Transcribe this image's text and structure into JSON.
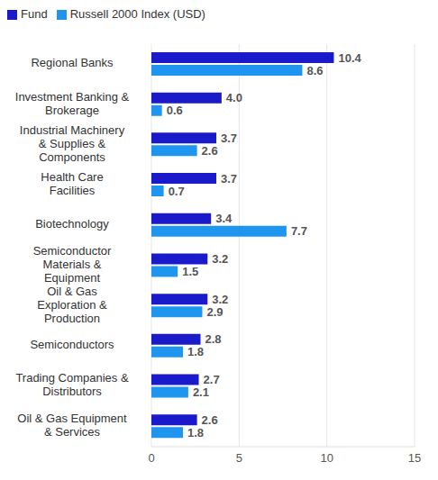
{
  "chart_data": {
    "type": "bar",
    "orientation": "horizontal",
    "categories": [
      "Regional Banks",
      "Investment Banking & Brokerage",
      "Industrial Machinery & Supplies & Components",
      "Health Care Facilities",
      "Biotechnology",
      "Semiconductor Materials & Equipment",
      "Oil & Gas Exploration & Production",
      "Semiconductors",
      "Trading Companies & Distributors",
      "Oil & Gas Equipment & Services"
    ],
    "series": [
      {
        "name": "Fund",
        "color": "#1a1acb",
        "values": [
          10.4,
          4,
          3.7,
          3.7,
          3.4,
          3.2,
          3.2,
          2.8,
          2.7,
          2.6
        ],
        "value_labels": [
          "10.4",
          "4.0",
          "3.7",
          "3.7",
          "3.4",
          "3.2",
          "3.2",
          "2.8",
          "2.7",
          "2.6"
        ]
      },
      {
        "name": "Russell 2000 Index (USD)",
        "color": "#1e96ef",
        "values": [
          8.6,
          0.6,
          2.6,
          0.7,
          7.7,
          1.5,
          2.9,
          1.8,
          2.1,
          1.8
        ],
        "value_labels": [
          "8.6",
          "0.6",
          "2.6",
          "0.7",
          "7.7",
          "1.5",
          "2.9",
          "1.8",
          "2.1",
          "1.8"
        ]
      }
    ],
    "xlim": [
      0,
      15
    ],
    "xticks": [
      0,
      5,
      10,
      15
    ],
    "grid": true,
    "legend": "top-left",
    "data_labels": true
  }
}
